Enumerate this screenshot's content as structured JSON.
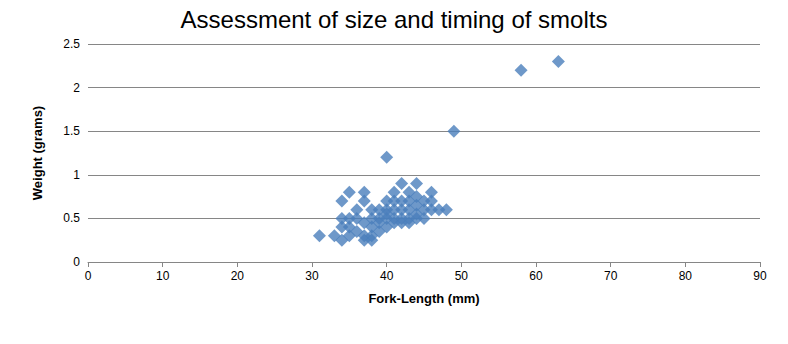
{
  "chart_data": {
    "type": "scatter",
    "title": "Assessment of size and timing of smolts",
    "xlabel": "Fork-Length (mm)",
    "ylabel": "Weight (grams)",
    "x": [
      31,
      33,
      34,
      34,
      34,
      34,
      35,
      35,
      35,
      35,
      36,
      36,
      36,
      37,
      37,
      37,
      37,
      37,
      38,
      38,
      38,
      38,
      38,
      39,
      39,
      39,
      39,
      40,
      40,
      40,
      40,
      40,
      40,
      41,
      41,
      41,
      41,
      41,
      42,
      42,
      42,
      42,
      42,
      43,
      43,
      43,
      43,
      43,
      44,
      44,
      44,
      44,
      44,
      45,
      45,
      45,
      46,
      46,
      46,
      47,
      48,
      49,
      58,
      63
    ],
    "values": [
      0.3,
      0.3,
      0.25,
      0.4,
      0.5,
      0.7,
      0.8,
      0.5,
      0.3,
      0.4,
      0.35,
      0.5,
      0.6,
      0.3,
      0.45,
      0.7,
      0.8,
      0.25,
      0.3,
      0.5,
      0.6,
      0.4,
      0.25,
      0.35,
      0.5,
      0.6,
      0.45,
      0.4,
      0.5,
      0.6,
      0.7,
      1.2,
      0.55,
      0.45,
      0.6,
      0.7,
      0.8,
      0.5,
      0.5,
      0.6,
      0.9,
      0.7,
      0.45,
      0.5,
      0.6,
      0.8,
      0.45,
      0.7,
      0.55,
      0.65,
      0.9,
      0.75,
      0.5,
      0.6,
      0.7,
      0.5,
      0.6,
      0.8,
      0.7,
      0.6,
      0.6,
      1.5,
      2.2,
      2.3
    ],
    "color": "#4a7ebb",
    "marker": "diamond",
    "xlim": [
      0,
      90
    ],
    "xticks": [
      0,
      10,
      20,
      30,
      40,
      50,
      60,
      70,
      80,
      90
    ],
    "ylim": [
      0,
      2.5
    ],
    "yticks": [
      0,
      0.5,
      1,
      1.5,
      2,
      2.5
    ],
    "grid": true
  }
}
